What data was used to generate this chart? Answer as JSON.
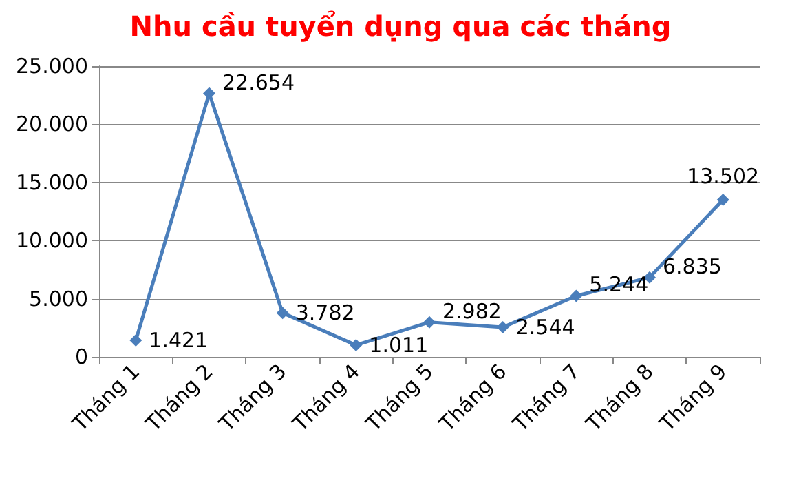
{
  "chart_data": {
    "type": "line",
    "title": "Nhu cầu tuyển dụng qua các tháng",
    "categories": [
      "Tháng 1",
      "Tháng 2",
      "Tháng 3",
      "Tháng 4",
      "Tháng 5",
      "Tháng 6",
      "Tháng 7",
      "Tháng 8",
      "Tháng 9"
    ],
    "series": [
      {
        "color": "#4a7ebb",
        "values": [
          1421,
          22654,
          3782,
          1011,
          2982,
          2544,
          5244,
          6835,
          13502
        ],
        "value_labels": [
          "1.421",
          "22.654",
          "3.782",
          "1.011",
          "2.982",
          "2.544",
          "5.244",
          "6.835",
          "13.502"
        ]
      }
    ],
    "ylim": [
      0,
      25000
    ],
    "yticks": [
      0,
      {
        "value": 5000,
        "label": "5.000"
      },
      {
        "value": 10000,
        "label": "10.000"
      },
      {
        "value": 15000,
        "label": "15.000"
      },
      {
        "value": 20000,
        "label": "20.000"
      },
      {
        "value": 25000,
        "label": "25.000"
      }
    ],
    "grid": "y",
    "marker": "diamond",
    "line_style": "solid"
  }
}
